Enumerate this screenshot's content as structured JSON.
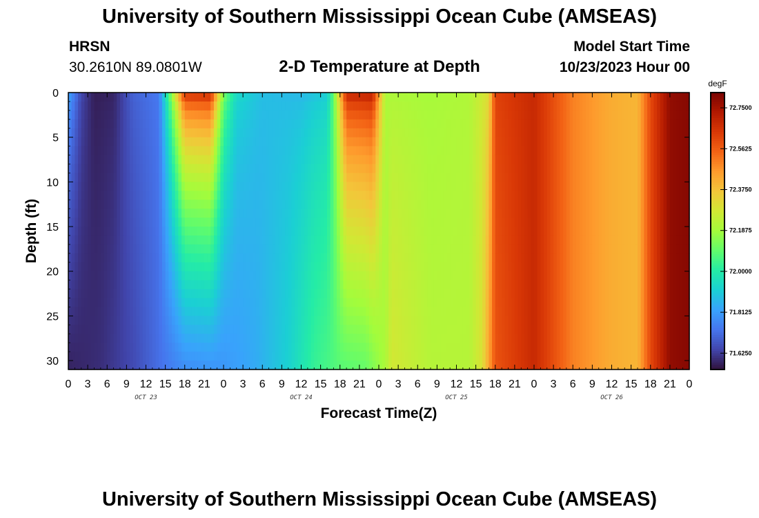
{
  "header": {
    "title": "University of Southern Mississippi Ocean Cube (AMSEAS)",
    "station_id": "HRSN",
    "station_coords": "30.2610N  89.0801W",
    "subtitle": "2-D Temperature at Depth",
    "start_label": "Model Start Time",
    "start_value": "10/23/2023 Hour 00"
  },
  "footer": {
    "title": "University of Southern Mississippi Ocean Cube (AMSEAS)"
  },
  "chart_data": {
    "type": "heatmap",
    "xlabel": "Forecast Time(Z)",
    "ylabel": "Depth (ft)",
    "x_range_hours": [
      0,
      96
    ],
    "x_tick_labels": [
      "0",
      "3",
      "6",
      "9",
      "12",
      "15",
      "18",
      "21",
      "0",
      "3",
      "6",
      "9",
      "12",
      "15",
      "18",
      "21",
      "0",
      "3",
      "6",
      "9",
      "12",
      "15",
      "18",
      "21",
      "0",
      "3",
      "6",
      "9",
      "12",
      "15",
      "18",
      "21",
      "0"
    ],
    "day_labels": [
      {
        "label": "OCT 23",
        "hour": 12
      },
      {
        "label": "OCT 24",
        "hour": 36
      },
      {
        "label": "OCT 25",
        "hour": 60
      },
      {
        "label": "OCT 26",
        "hour": 84
      }
    ],
    "ylim": [
      0,
      31
    ],
    "y_ticks": [
      0,
      5,
      10,
      15,
      20,
      25,
      30
    ],
    "colorbar": {
      "unit": "degF",
      "min": 71.55,
      "max": 72.82,
      "ticks": [
        "72.7500",
        "72.5625",
        "72.3750",
        "72.1875",
        "72.0000",
        "71.8125",
        "71.6250"
      ]
    },
    "surface_temp_by_hour": [
      [
        0,
        71.85
      ],
      [
        2,
        71.65
      ],
      [
        4,
        71.57
      ],
      [
        7,
        71.58
      ],
      [
        10,
        71.7
      ],
      [
        14,
        71.74
      ],
      [
        16,
        72.2
      ],
      [
        18,
        72.7
      ],
      [
        22,
        72.72
      ],
      [
        24,
        72.15
      ],
      [
        26,
        71.95
      ],
      [
        30,
        71.88
      ],
      [
        36,
        71.86
      ],
      [
        40,
        71.9
      ],
      [
        41,
        72.1
      ],
      [
        43,
        72.72
      ],
      [
        47,
        72.74
      ],
      [
        49,
        72.2
      ],
      [
        56,
        72.19
      ],
      [
        62,
        72.21
      ],
      [
        65,
        72.3
      ],
      [
        66,
        72.62
      ],
      [
        72,
        72.68
      ],
      [
        78,
        72.5
      ],
      [
        84,
        72.42
      ],
      [
        88,
        72.4
      ],
      [
        90,
        72.6
      ],
      [
        93,
        72.78
      ],
      [
        96,
        72.8
      ]
    ],
    "bottom_temp_by_hour": [
      [
        0,
        71.58
      ],
      [
        5,
        71.6
      ],
      [
        10,
        71.65
      ],
      [
        14,
        71.72
      ],
      [
        18,
        71.78
      ],
      [
        24,
        71.8
      ],
      [
        29,
        71.84
      ],
      [
        34,
        71.92
      ],
      [
        38,
        72.03
      ],
      [
        42,
        72.08
      ],
      [
        46,
        72.1
      ],
      [
        49,
        72.2
      ],
      [
        50,
        72.28
      ],
      [
        56,
        72.22
      ],
      [
        62,
        72.22
      ],
      [
        64,
        72.3
      ],
      [
        66,
        72.58
      ],
      [
        72,
        72.68
      ],
      [
        78,
        72.5
      ],
      [
        84,
        72.42
      ],
      [
        88,
        72.4
      ],
      [
        90,
        72.6
      ],
      [
        93,
        72.78
      ],
      [
        96,
        72.8
      ]
    ]
  },
  "colors": {
    "colormap": [
      "#30123b",
      "#4145ab",
      "#4675ed",
      "#39a2fc",
      "#1bcfd4",
      "#24eca6",
      "#61fc6c",
      "#a4fc3b",
      "#d1e834",
      "#f3c63a",
      "#fe9b2d",
      "#f36315",
      "#d93806",
      "#b11901",
      "#7a0402"
    ]
  }
}
